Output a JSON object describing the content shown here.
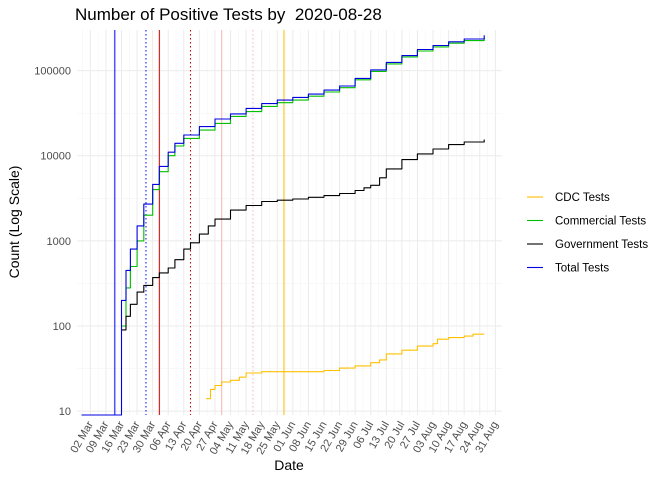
{
  "chart_data": {
    "type": "line",
    "title": "Number of Positive Tests by  2020-08-28",
    "xlabel": "Date",
    "ylabel": "Count (Log Scale)",
    "y_scale": "log10",
    "ylim": [
      9,
      300000
    ],
    "xlim": [
      "2020-02-25",
      "2020-09-03"
    ],
    "grid": true,
    "legend_position": "right",
    "x_ticks": [
      "2020-03-02",
      "2020-03-09",
      "2020-03-16",
      "2020-03-23",
      "2020-03-30",
      "2020-04-06",
      "2020-04-13",
      "2020-04-20",
      "2020-04-27",
      "2020-05-04",
      "2020-05-11",
      "2020-05-18",
      "2020-05-25",
      "2020-06-01",
      "2020-06-08",
      "2020-06-15",
      "2020-06-22",
      "2020-06-29",
      "2020-07-06",
      "2020-07-13",
      "2020-07-20",
      "2020-07-27",
      "2020-08-03",
      "2020-08-10",
      "2020-08-17",
      "2020-08-24",
      "2020-08-31"
    ],
    "x_tick_labels": [
      "02 Mar",
      "09 Mar",
      "16 Mar",
      "23 Mar",
      "30 Mar",
      "06 Apr",
      "13 Apr",
      "20 Apr",
      "27 Apr",
      "04 May",
      "11 May",
      "18 May",
      "25 May",
      "01 Jun",
      "08 Jun",
      "15 Jun",
      "22 Jun",
      "29 Jun",
      "06 Jul",
      "13 Jul",
      "20 Jul",
      "27 Jul",
      "03 Aug",
      "10 Aug",
      "17 Aug",
      "24 Aug",
      "31 Aug"
    ],
    "y_ticks": [
      10,
      100,
      1000,
      10000,
      100000
    ],
    "y_tick_labels": [
      "10",
      "100",
      "1000",
      "10000",
      "100000"
    ],
    "series": [
      {
        "name": "CDC Tests",
        "color": "#FFC000",
        "x": [
          "2020-04-23",
          "2020-04-25",
          "2020-04-27",
          "2020-04-30",
          "2020-05-04",
          "2020-05-08",
          "2020-05-11",
          "2020-05-18",
          "2020-05-25",
          "2020-06-01",
          "2020-06-08",
          "2020-06-15",
          "2020-06-22",
          "2020-06-29",
          "2020-07-06",
          "2020-07-10",
          "2020-07-13",
          "2020-07-20",
          "2020-07-27",
          "2020-08-03",
          "2020-08-05",
          "2020-08-10",
          "2020-08-17",
          "2020-08-21",
          "2020-08-26"
        ],
        "y": [
          14,
          18,
          20,
          22,
          23,
          25,
          28,
          29,
          29,
          29,
          29,
          30,
          32,
          34,
          37,
          40,
          47,
          52,
          58,
          62,
          70,
          73,
          76,
          80,
          80
        ]
      },
      {
        "name": "Commercial Tests",
        "color": "#00C000",
        "x": [
          "2020-03-16",
          "2020-03-18",
          "2020-03-20",
          "2020-03-23",
          "2020-03-26",
          "2020-03-30",
          "2020-04-02",
          "2020-04-06",
          "2020-04-09",
          "2020-04-13",
          "2020-04-20",
          "2020-04-27",
          "2020-05-04",
          "2020-05-11",
          "2020-05-18",
          "2020-05-25",
          "2020-06-01",
          "2020-06-08",
          "2020-06-15",
          "2020-06-22",
          "2020-06-29",
          "2020-07-06",
          "2020-07-13",
          "2020-07-20",
          "2020-07-27",
          "2020-08-03",
          "2020-08-10",
          "2020-08-17",
          "2020-08-26"
        ],
        "y": [
          100,
          280,
          500,
          1000,
          2000,
          4000,
          6500,
          10000,
          13000,
          16000,
          20000,
          24000,
          29000,
          33000,
          38000,
          42000,
          45000,
          50000,
          56000,
          63000,
          78000,
          98000,
          120000,
          145000,
          170000,
          190000,
          210000,
          225000,
          245000
        ]
      },
      {
        "name": "Government Tests",
        "color": "#000000",
        "x": [
          "2020-03-16",
          "2020-03-18",
          "2020-03-20",
          "2020-03-23",
          "2020-03-26",
          "2020-03-30",
          "2020-04-02",
          "2020-04-06",
          "2020-04-09",
          "2020-04-13",
          "2020-04-16",
          "2020-04-20",
          "2020-04-24",
          "2020-04-27",
          "2020-05-04",
          "2020-05-11",
          "2020-05-18",
          "2020-05-25",
          "2020-06-01",
          "2020-06-08",
          "2020-06-15",
          "2020-06-22",
          "2020-06-29",
          "2020-07-03",
          "2020-07-06",
          "2020-07-10",
          "2020-07-13",
          "2020-07-20",
          "2020-07-27",
          "2020-08-03",
          "2020-08-10",
          "2020-08-17",
          "2020-08-26"
        ],
        "y": [
          90,
          130,
          180,
          250,
          300,
          370,
          420,
          480,
          600,
          800,
          950,
          1200,
          1500,
          1800,
          2300,
          2600,
          2900,
          3000,
          3100,
          3250,
          3400,
          3600,
          3900,
          4200,
          4500,
          5500,
          7000,
          9000,
          10500,
          12000,
          13500,
          14500,
          15500
        ]
      },
      {
        "name": "Total Tests",
        "color": "#0000E0",
        "x": [
          "2020-02-27",
          "2020-03-16",
          "2020-03-16",
          "2020-03-18",
          "2020-03-20",
          "2020-03-23",
          "2020-03-26",
          "2020-03-30",
          "2020-04-02",
          "2020-04-06",
          "2020-04-09",
          "2020-04-13",
          "2020-04-20",
          "2020-04-27",
          "2020-05-04",
          "2020-05-11",
          "2020-05-18",
          "2020-05-25",
          "2020-06-01",
          "2020-06-08",
          "2020-06-15",
          "2020-06-22",
          "2020-06-29",
          "2020-07-06",
          "2020-07-13",
          "2020-07-20",
          "2020-07-27",
          "2020-08-03",
          "2020-08-10",
          "2020-08-17",
          "2020-08-26"
        ],
        "y": [
          9,
          9,
          200,
          450,
          800,
          1500,
          2700,
          4600,
          7500,
          11000,
          14000,
          17500,
          22000,
          27000,
          31000,
          36000,
          41000,
          45000,
          48500,
          53000,
          59000,
          66000,
          81000,
          102000,
          125000,
          150000,
          177000,
          197000,
          218000,
          235000,
          260000
        ]
      }
    ],
    "vlines": [
      {
        "x": "2020-03-13",
        "color": "#0000FF",
        "style": "solid"
      },
      {
        "x": "2020-03-27",
        "color": "#0000FF",
        "style": "dotted"
      },
      {
        "x": "2020-04-02",
        "color": "#CC0000",
        "style": "solid"
      },
      {
        "x": "2020-04-16",
        "color": "#CC0000",
        "style": "dotted"
      },
      {
        "x": "2020-04-30",
        "color": "#FFB6B6",
        "style": "solid"
      },
      {
        "x": "2020-05-14",
        "color": "#FFB6B6",
        "style": "dotted"
      },
      {
        "x": "2020-05-28",
        "color": "#FFC000",
        "style": "solid"
      }
    ]
  }
}
